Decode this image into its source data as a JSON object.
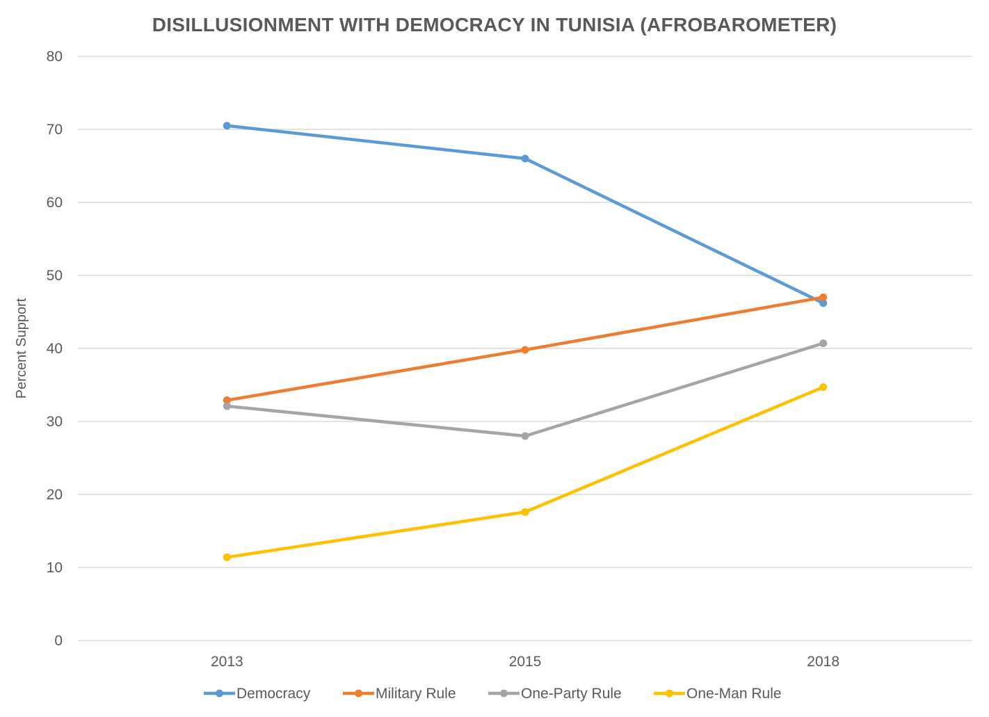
{
  "chart_data": {
    "type": "line",
    "title": "DISILLUSIONMENT WITH DEMOCRACY IN TUNISIA (AFROBAROMETER)",
    "xlabel": "",
    "ylabel": "Percent Support",
    "categories": [
      "2013",
      "2015",
      "2018"
    ],
    "ylim": [
      0,
      80
    ],
    "yticks": [
      0,
      10,
      20,
      30,
      40,
      50,
      60,
      70,
      80
    ],
    "ytick_labels": [
      "0",
      "10",
      "20",
      "30",
      "40",
      "50",
      "60",
      "70",
      "80"
    ],
    "grid": true,
    "legend_position": "bottom",
    "series": [
      {
        "name": "Democracy",
        "color": "#5b9bd5",
        "values": [
          70.5,
          66.0,
          46.2
        ]
      },
      {
        "name": "Military Rule",
        "color": "#ed7d31",
        "values": [
          32.9,
          39.8,
          47.0
        ]
      },
      {
        "name": "One-Party Rule",
        "color": "#a5a5a5",
        "values": [
          32.1,
          28.0,
          40.7
        ]
      },
      {
        "name": "One-Man Rule",
        "color": "#ffc000",
        "values": [
          11.4,
          17.6,
          34.7
        ]
      }
    ]
  }
}
